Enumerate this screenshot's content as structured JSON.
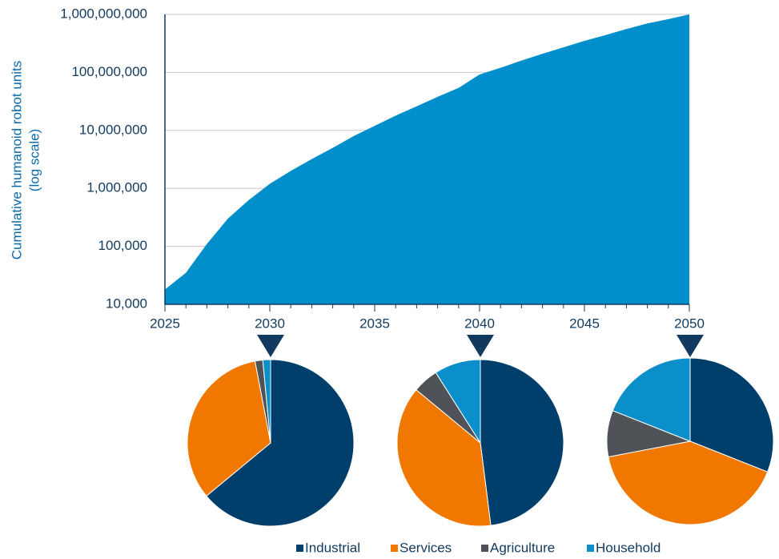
{
  "chart_data": [
    {
      "type": "area",
      "ylabel": "Cumulative humanoid robot units",
      "ylabel_note": "(log scale)",
      "log_scale": true,
      "grid": true,
      "color": "#008fcb",
      "x": [
        2025,
        2026,
        2027,
        2028,
        2029,
        2030,
        2031,
        2032,
        2033,
        2034,
        2035,
        2036,
        2037,
        2038,
        2039,
        2040,
        2041,
        2042,
        2043,
        2044,
        2045,
        2046,
        2047,
        2048,
        2049,
        2050
      ],
      "values": [
        18000,
        35000,
        110000,
        300000,
        630000,
        1200000,
        2000000,
        3200000,
        5000000,
        8000000,
        12000000,
        18000000,
        26000000,
        38000000,
        54000000,
        92000000,
        120000000,
        160000000,
        210000000,
        270000000,
        350000000,
        440000000,
        560000000,
        700000000,
        830000000,
        1000000000
      ],
      "xlim": [
        2025,
        2050
      ],
      "xticks": [
        2025,
        2030,
        2035,
        2040,
        2045,
        2050
      ],
      "ylim": [
        10000,
        1000000000
      ],
      "yticks": [
        {
          "value": 10000,
          "label": "10,000"
        },
        {
          "value": 100000,
          "label": "100,000"
        },
        {
          "value": 1000000,
          "label": "1,000,000"
        },
        {
          "value": 10000000,
          "label": "10,000,000"
        },
        {
          "value": 100000000,
          "label": "100,000,000"
        },
        {
          "value": 1000000000,
          "label": "1,000,000,000"
        }
      ]
    },
    {
      "type": "pie",
      "categories": [
        "Industrial",
        "Services",
        "Agriculture",
        "Household"
      ],
      "colors": [
        "#003f6b",
        "#f07800",
        "#4f5257",
        "#0a8fcb"
      ],
      "values": [
        64,
        33,
        1.5,
        1.5
      ]
    },
    {
      "type": "pie",
      "categories": [
        "Industrial",
        "Services",
        "Agriculture",
        "Household"
      ],
      "colors": [
        "#003f6b",
        "#f07800",
        "#4f5257",
        "#0a8fcb"
      ],
      "values": [
        48,
        38,
        5,
        9
      ]
    },
    {
      "type": "pie",
      "categories": [
        "Industrial",
        "Services",
        "Agriculture",
        "Household"
      ],
      "colors": [
        "#003f6b",
        "#f07800",
        "#4f5257",
        "#0a8fcb"
      ],
      "values": [
        31,
        41,
        9,
        19
      ]
    }
  ]
}
